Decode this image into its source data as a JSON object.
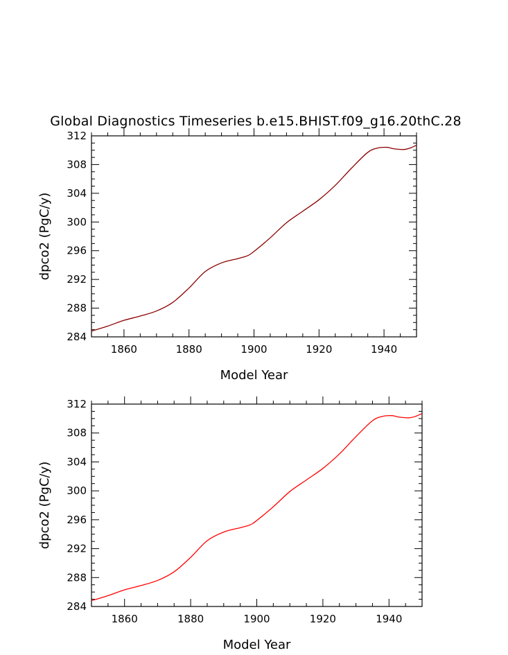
{
  "chart_data": [
    {
      "type": "line",
      "title": "Global Diagnostics Timeseries b.e15.BHIST.f09_g16.20thC.28",
      "xlabel": "Model Year",
      "ylabel": "dpco2 (PgC/y)",
      "xlim": [
        1850,
        1950
      ],
      "ylim": [
        284,
        312
      ],
      "xticks": [
        1860,
        1880,
        1900,
        1920,
        1940
      ],
      "yticks": [
        284,
        288,
        292,
        296,
        300,
        304,
        308,
        312
      ],
      "x_minor_step": 5,
      "y_minor_step": 1,
      "grid": false,
      "series": [
        {
          "color": "#8b0000",
          "x": [
            1850,
            1855,
            1860,
            1865,
            1870,
            1875,
            1880,
            1885,
            1890,
            1895,
            1898,
            1900,
            1905,
            1910,
            1915,
            1920,
            1925,
            1930,
            1935,
            1938,
            1941,
            1943,
            1946,
            1948,
            1950
          ],
          "y": [
            284.8,
            285.5,
            286.3,
            286.9,
            287.6,
            288.8,
            290.8,
            293.1,
            294.3,
            294.9,
            295.3,
            295.9,
            297.8,
            299.9,
            301.5,
            303.1,
            305.1,
            307.5,
            309.7,
            310.3,
            310.4,
            310.2,
            310.1,
            310.3,
            310.7
          ]
        }
      ]
    },
    {
      "type": "line",
      "title": "",
      "xlabel": "Model Year",
      "ylabel": "dpco2 (PgC/y)",
      "xlim": [
        1850,
        1950
      ],
      "ylim": [
        284,
        312
      ],
      "xticks": [
        1860,
        1880,
        1900,
        1920,
        1940
      ],
      "yticks": [
        284,
        288,
        292,
        296,
        300,
        304,
        308,
        312
      ],
      "x_minor_step": 5,
      "y_minor_step": 1,
      "grid": false,
      "series": [
        {
          "color": "#ff0000",
          "x": [
            1850,
            1855,
            1860,
            1865,
            1870,
            1875,
            1880,
            1885,
            1890,
            1895,
            1898,
            1900,
            1905,
            1910,
            1915,
            1920,
            1925,
            1930,
            1935,
            1938,
            1941,
            1943,
            1946,
            1948,
            1950
          ],
          "y": [
            284.8,
            285.5,
            286.3,
            286.9,
            287.6,
            288.8,
            290.8,
            293.1,
            294.3,
            294.9,
            295.3,
            295.9,
            297.8,
            299.9,
            301.5,
            303.1,
            305.1,
            307.5,
            309.7,
            310.3,
            310.4,
            310.2,
            310.1,
            310.3,
            310.7
          ]
        }
      ]
    }
  ]
}
